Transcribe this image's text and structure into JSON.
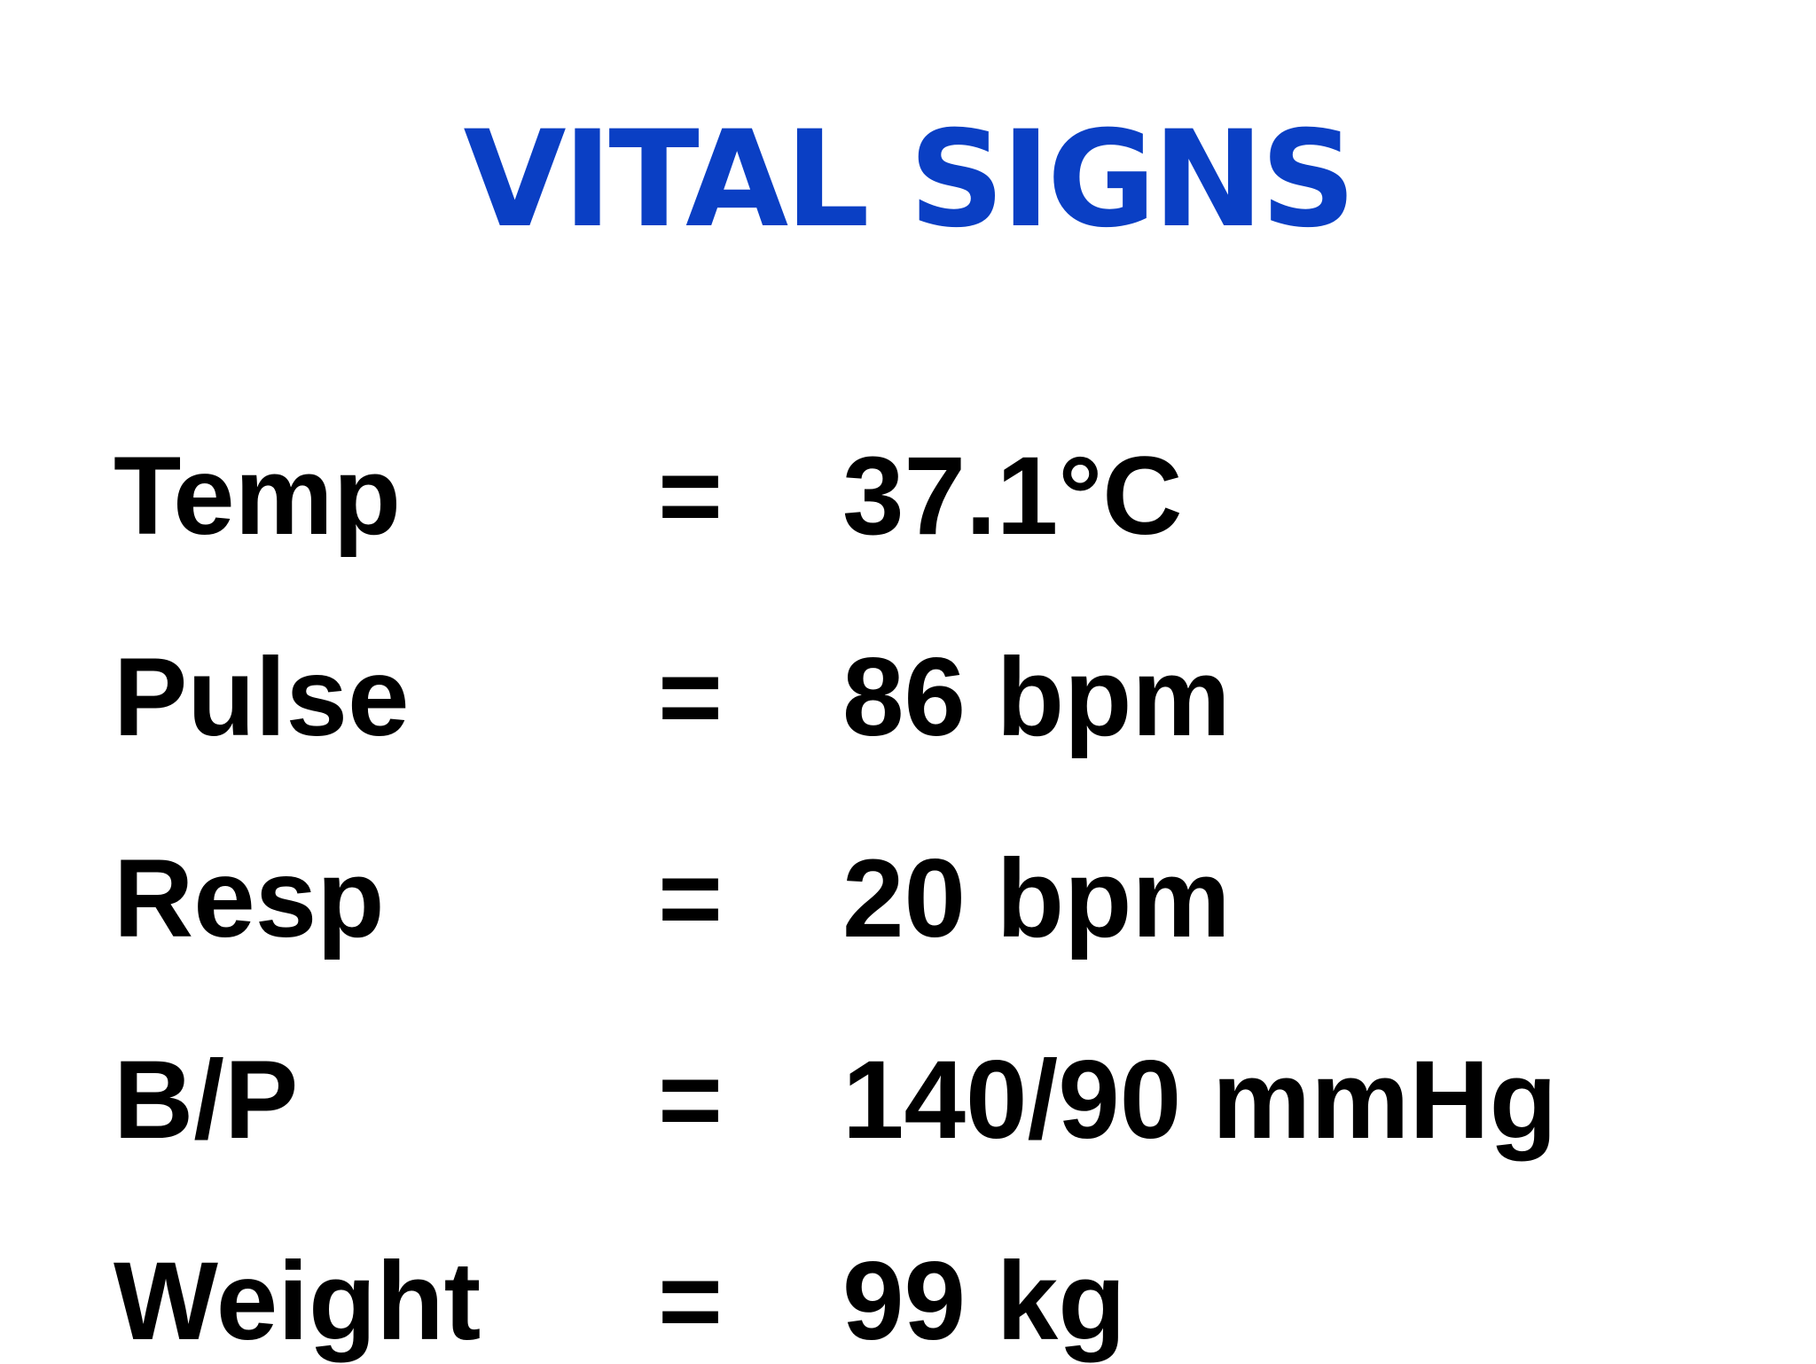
{
  "title": "VITAL SIGNS",
  "vitals": [
    {
      "label": "Temp",
      "equals": "=",
      "value": "37.1°C"
    },
    {
      "label": "Pulse",
      "equals": "=",
      "value": "86 bpm"
    },
    {
      "label": "Resp",
      "equals": "=",
      "value": "20 bpm"
    },
    {
      "label": "B/P",
      "equals": "=",
      "value": "140/90 mmHg"
    },
    {
      "label": "Weight",
      "equals": "=",
      "value": "99 kg"
    }
  ],
  "colors": {
    "title": "#0a3fc4",
    "text": "#000000",
    "background": "#ffffff"
  }
}
